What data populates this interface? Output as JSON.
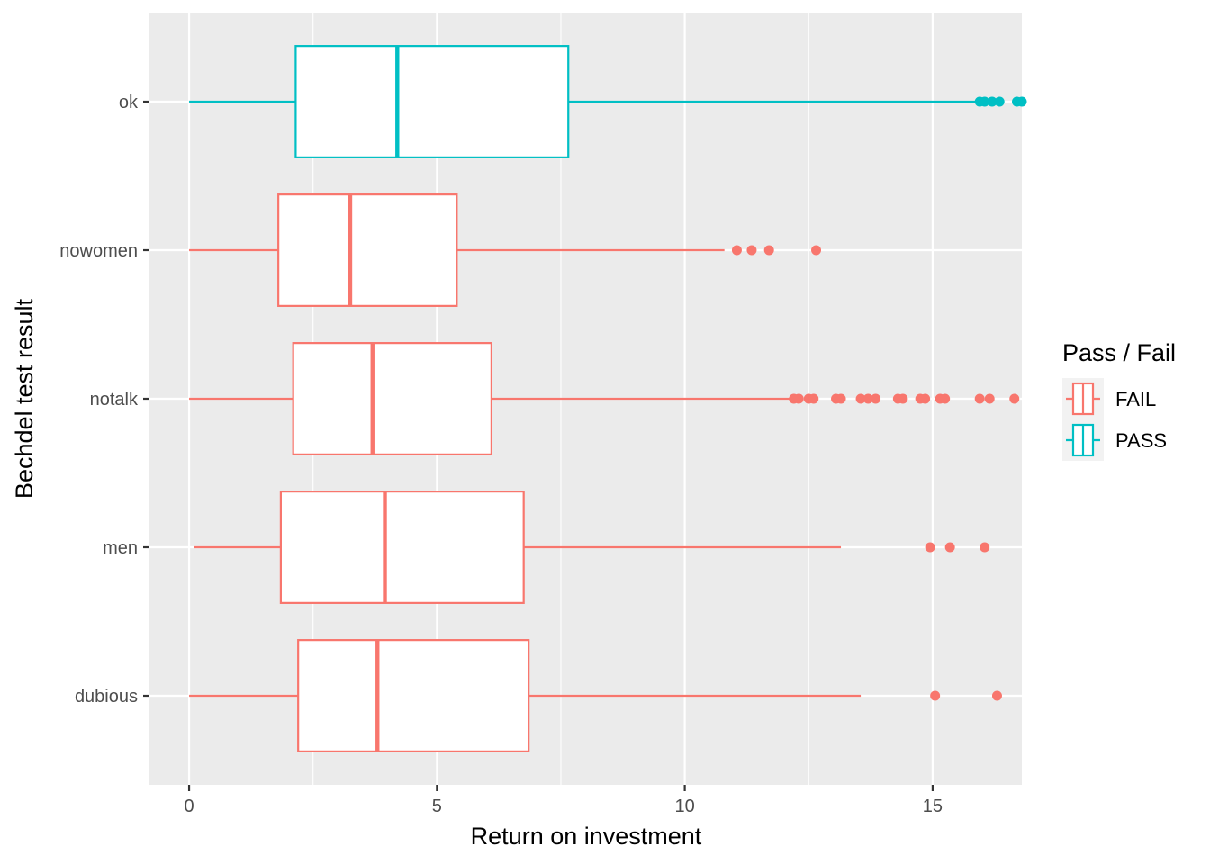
{
  "chart_data": {
    "type": "boxplot",
    "orientation": "horizontal",
    "xlabel": "Return on investment",
    "ylabel": "Bechdel test result",
    "xlim": [
      -0.8,
      16.8
    ],
    "x_ticks": [
      0,
      5,
      10,
      15
    ],
    "x_tick_labels": [
      "0",
      "5",
      "10",
      "15"
    ],
    "categories": [
      "dubious",
      "men",
      "notalk",
      "nowomen",
      "ok"
    ],
    "legend": {
      "title": "Pass / Fail",
      "position": "right",
      "entries": [
        {
          "label": "FAIL",
          "color": "#F8766D"
        },
        {
          "label": "PASS",
          "color": "#00BFC4"
        }
      ]
    },
    "grid": true,
    "series": [
      {
        "category": "dubious",
        "group": "FAIL",
        "whisker_low": 0.0,
        "q1": 2.2,
        "median": 3.8,
        "q3": 6.85,
        "whisker_high": 13.55,
        "outliers": [
          15.05,
          16.3
        ]
      },
      {
        "category": "men",
        "group": "FAIL",
        "whisker_low": 0.1,
        "q1": 1.85,
        "median": 3.95,
        "q3": 6.75,
        "whisker_high": 13.15,
        "outliers": [
          14.95,
          15.35,
          16.05
        ]
      },
      {
        "category": "notalk",
        "group": "FAIL",
        "whisker_low": 0.0,
        "q1": 2.1,
        "median": 3.7,
        "q3": 6.1,
        "whisker_high": 12.15,
        "outliers": [
          12.2,
          12.3,
          12.5,
          12.6,
          13.05,
          13.15,
          13.55,
          13.7,
          13.85,
          14.3,
          14.4,
          14.75,
          14.85,
          15.15,
          15.25,
          15.95,
          16.15,
          16.65
        ]
      },
      {
        "category": "nowomen",
        "group": "FAIL",
        "whisker_low": 0.0,
        "q1": 1.8,
        "median": 3.25,
        "q3": 5.4,
        "whisker_high": 10.8,
        "outliers": [
          11.05,
          11.35,
          11.7,
          12.65
        ]
      },
      {
        "category": "ok",
        "group": "PASS",
        "whisker_low": 0.0,
        "q1": 2.15,
        "median": 4.2,
        "q3": 7.65,
        "whisker_high": 15.9,
        "outliers": [
          15.95,
          16.05,
          16.2,
          16.35,
          16.7,
          16.8
        ]
      }
    ]
  }
}
